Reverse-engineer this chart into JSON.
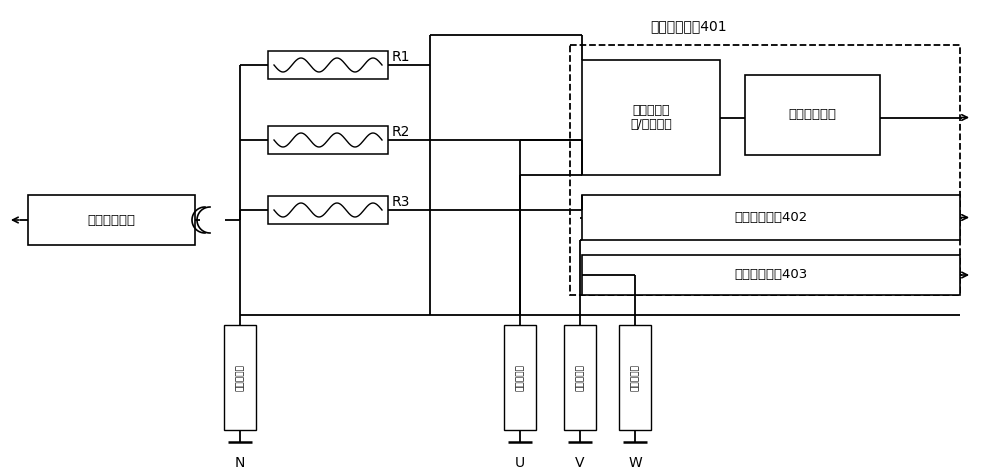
{
  "bg_color": "#ffffff",
  "module_401_label": "加热检测模块401",
  "module_402_label": "加热检测模块402",
  "module_403_label": "加热检测模块403",
  "voltage_input_label": "加热电压输\n入/检测电路",
  "voltage_output_label": "电压输出电路",
  "current_module_label": "电流检测模块",
  "bottom_label_N": "零线保护器",
  "bottom_label_U": "一相保护器",
  "bottom_label_V": "二相保护器",
  "bottom_label_W": "三相保护器",
  "R1": "R1",
  "R2": "R2",
  "R3": "R3",
  "N": "N",
  "U": "U",
  "V": "V",
  "W": "W"
}
